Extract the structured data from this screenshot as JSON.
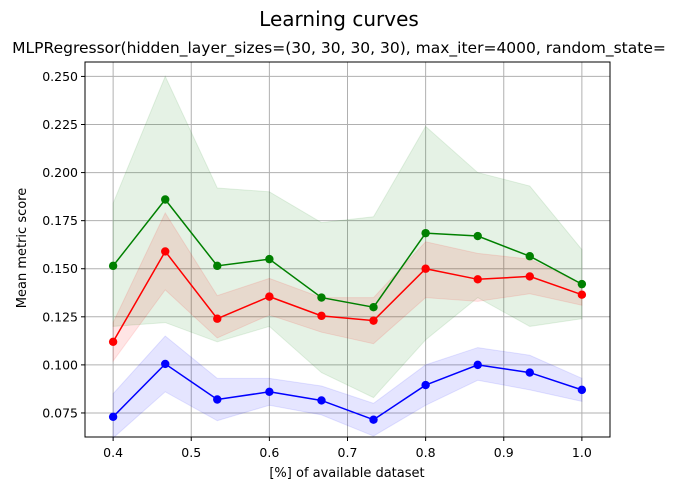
{
  "chart_data": {
    "type": "line",
    "title": "Learning curves",
    "subtitle": "MLPRegressor(hidden_layer_sizes=(30, 30, 30, 30), max_iter=4000, random_state=",
    "xlabel": "[%] of available dataset",
    "ylabel": "Mean metric score",
    "xlim": [
      0.364,
      1.036
    ],
    "ylim": [
      0.0625,
      0.2575
    ],
    "xticks": [
      "0.4",
      "0.5",
      "0.6",
      "0.7",
      "0.8",
      "0.9",
      "1.0"
    ],
    "yticks": [
      "0.075",
      "0.100",
      "0.125",
      "0.150",
      "0.175",
      "0.200",
      "0.225",
      "0.250"
    ],
    "grid": true,
    "x": [
      0.4,
      0.4667,
      0.5333,
      0.6,
      0.6667,
      0.7333,
      0.8,
      0.8667,
      0.9333,
      1.0
    ],
    "series": [
      {
        "color": "#008000",
        "values": [
          0.1515,
          0.186,
          0.1515,
          0.155,
          0.135,
          0.13,
          0.1685,
          0.167,
          0.1565,
          0.142
        ],
        "upper": [
          0.184,
          0.25,
          0.192,
          0.19,
          0.174,
          0.177,
          0.224,
          0.2,
          0.193,
          0.16
        ],
        "lower": [
          0.12,
          0.122,
          0.112,
          0.12,
          0.096,
          0.083,
          0.113,
          0.135,
          0.12,
          0.124
        ]
      },
      {
        "color": "#ff0000",
        "values": [
          0.112,
          0.159,
          0.124,
          0.1355,
          0.1255,
          0.123,
          0.15,
          0.1445,
          0.146,
          0.1365
        ],
        "upper": [
          0.122,
          0.179,
          0.136,
          0.145,
          0.135,
          0.135,
          0.164,
          0.158,
          0.155,
          0.142
        ],
        "lower": [
          0.102,
          0.139,
          0.114,
          0.126,
          0.117,
          0.111,
          0.135,
          0.133,
          0.137,
          0.131
        ]
      },
      {
        "color": "#0000ff",
        "values": [
          0.073,
          0.1005,
          0.082,
          0.086,
          0.0815,
          0.0715,
          0.0895,
          0.1,
          0.096,
          0.087
        ],
        "upper": [
          0.085,
          0.115,
          0.093,
          0.093,
          0.089,
          0.08,
          0.1,
          0.109,
          0.105,
          0.093
        ],
        "lower": [
          0.062,
          0.086,
          0.071,
          0.079,
          0.074,
          0.063,
          0.079,
          0.092,
          0.087,
          0.081
        ]
      }
    ]
  }
}
